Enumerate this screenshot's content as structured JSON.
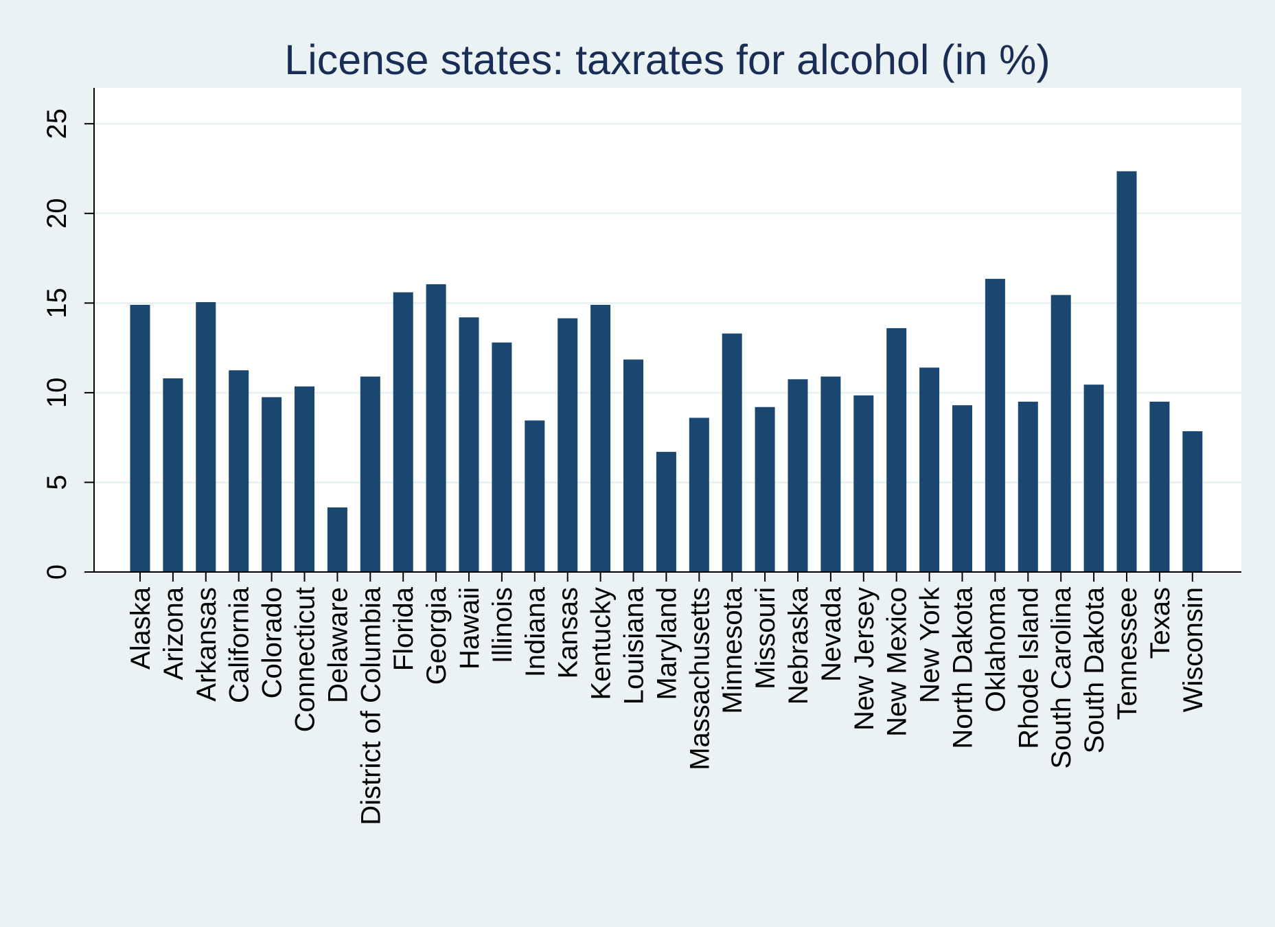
{
  "chart_data": {
    "type": "bar",
    "title": "License states: taxrates for alcohol (in %)",
    "xlabel": "",
    "ylabel": "",
    "categories": [
      "Alaska",
      "Arizona",
      "Arkansas",
      "California",
      "Colorado",
      "Connecticut",
      "Delaware",
      "District of Columbia",
      "Florida",
      "Georgia",
      "Hawaii",
      "Illinois",
      "Indiana",
      "Kansas",
      "Kentucky",
      "Louisiana",
      "Maryland",
      "Massachusetts",
      "Minnesota",
      "Missouri",
      "Nebraska",
      "Nevada",
      "New Jersey",
      "New Mexico",
      "New York",
      "North Dakota",
      "Oklahoma",
      "Rhode Island",
      "South Carolina",
      "South Dakota",
      "Tennessee",
      "Texas",
      "Wisconsin"
    ],
    "values": [
      14.9,
      10.8,
      15.05,
      11.25,
      9.75,
      10.35,
      3.6,
      10.9,
      15.6,
      16.05,
      14.2,
      12.8,
      8.45,
      14.15,
      14.9,
      11.85,
      6.7,
      8.6,
      13.3,
      9.2,
      10.75,
      10.9,
      9.85,
      13.6,
      11.4,
      9.3,
      16.35,
      9.5,
      15.45,
      10.45,
      22.35,
      9.5,
      7.85
    ],
    "yticks": [
      0,
      5,
      10,
      15,
      20,
      25
    ],
    "ylim": [
      0,
      27
    ],
    "grid": true,
    "legend": "none",
    "colors": {
      "bar": "#1a476f",
      "background": "#eaf2f3",
      "plot_background": "#ffffff",
      "grid": "#eaf2f3",
      "title": "#1a2e55"
    }
  }
}
